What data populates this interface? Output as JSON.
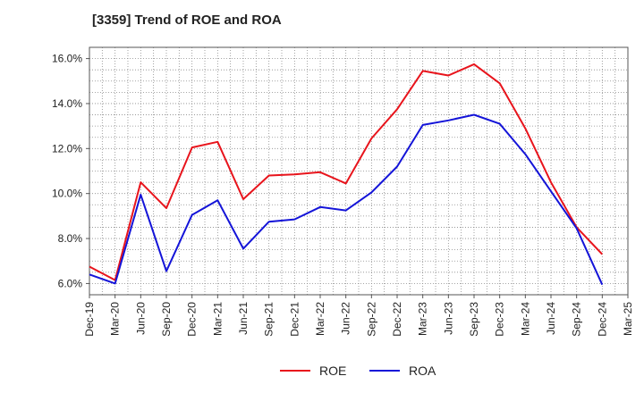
{
  "chart_data": {
    "type": "line",
    "title": "[3359]  Trend of ROE and ROA",
    "xlabel": "",
    "ylabel": "",
    "x": [
      "Dec-19",
      "Mar-20",
      "Jun-20",
      "Sep-20",
      "Dec-20",
      "Mar-21",
      "Jun-21",
      "Sep-21",
      "Dec-21",
      "Mar-22",
      "Jun-22",
      "Sep-22",
      "Dec-22",
      "Mar-23",
      "Jun-23",
      "Sep-23",
      "Dec-23",
      "Mar-24",
      "Jun-24",
      "Sep-24",
      "Dec-24",
      "Mar-25"
    ],
    "ylim": [
      5.5,
      16.5
    ],
    "yticks": [
      6.0,
      8.0,
      10.0,
      12.0,
      14.0,
      16.0
    ],
    "ytick_labels": [
      "6.0%",
      "8.0%",
      "10.0%",
      "12.0%",
      "14.0%",
      "16.0%"
    ],
    "grid": true,
    "legend_position": "bottom-center",
    "series": [
      {
        "name": "ROE",
        "color": "#e8141c",
        "values": [
          6.75,
          6.15,
          10.5,
          9.35,
          12.05,
          12.3,
          9.75,
          10.8,
          10.85,
          10.95,
          10.45,
          12.45,
          13.75,
          15.45,
          15.25,
          15.75,
          14.9,
          12.9,
          10.5,
          8.5,
          7.3,
          null
        ]
      },
      {
        "name": "ROA",
        "color": "#1414d8",
        "values": [
          6.4,
          6.0,
          9.95,
          6.55,
          9.05,
          9.7,
          7.55,
          8.75,
          8.85,
          9.4,
          9.25,
          10.05,
          11.2,
          13.05,
          13.25,
          13.5,
          13.1,
          11.75,
          10.1,
          8.45,
          5.95,
          null
        ]
      }
    ]
  }
}
